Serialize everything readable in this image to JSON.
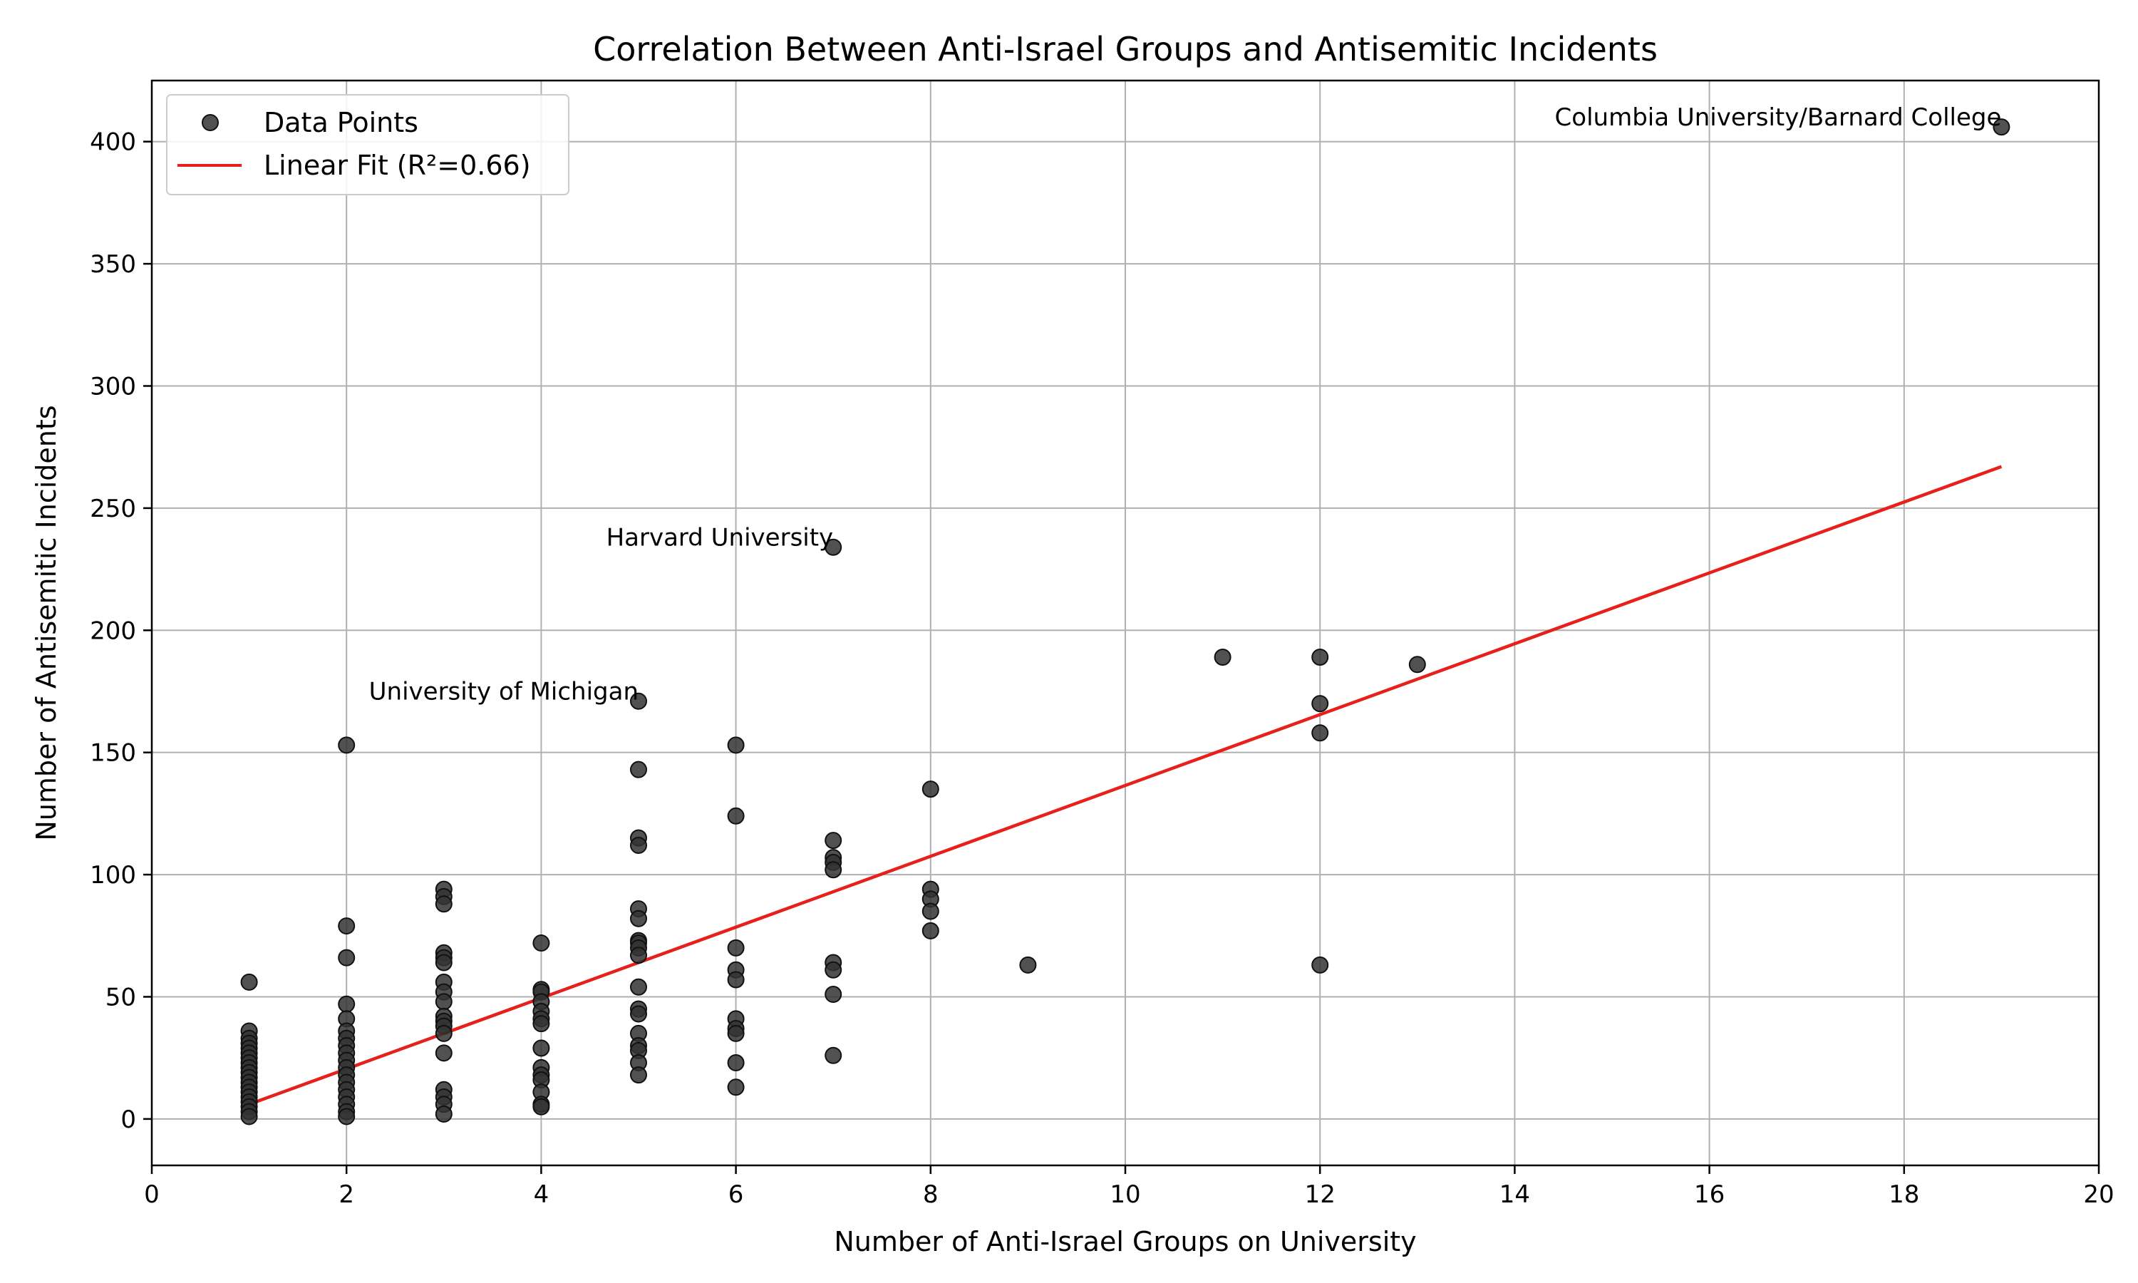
{
  "chart_data": {
    "type": "scatter",
    "title": "Correlation Between Anti-Israel Groups and Antisemitic Incidents",
    "xlabel": "Number of Anti-Israel Groups on University",
    "ylabel": "Number of Antisemitic Incidents",
    "xlim": [
      0,
      20
    ],
    "ylim": [
      -19,
      425
    ],
    "xticks": [
      0,
      2,
      4,
      6,
      8,
      10,
      12,
      14,
      16,
      18,
      20
    ],
    "yticks": [
      0,
      50,
      100,
      150,
      200,
      250,
      300,
      350,
      400
    ],
    "grid": true,
    "legend_position": "top-left",
    "legend": {
      "points_label": "Data Points",
      "fit_label": "Linear Fit (R²=0.66)"
    },
    "colors": {
      "points": "#333333",
      "fit": "#e8201c"
    },
    "series": [
      {
        "name": "Data Points",
        "kind": "scatter",
        "points": [
          [
            1,
            56
          ],
          [
            1,
            36
          ],
          [
            1,
            33
          ],
          [
            1,
            31
          ],
          [
            1,
            29
          ],
          [
            1,
            27
          ],
          [
            1,
            25
          ],
          [
            1,
            23
          ],
          [
            1,
            21
          ],
          [
            1,
            19
          ],
          [
            1,
            17
          ],
          [
            1,
            15
          ],
          [
            1,
            13
          ],
          [
            1,
            11
          ],
          [
            1,
            9
          ],
          [
            1,
            7
          ],
          [
            1,
            5
          ],
          [
            1,
            3
          ],
          [
            1,
            1
          ],
          [
            2,
            153
          ],
          [
            2,
            79
          ],
          [
            2,
            66
          ],
          [
            2,
            47
          ],
          [
            2,
            41
          ],
          [
            2,
            36
          ],
          [
            2,
            33
          ],
          [
            2,
            30
          ],
          [
            2,
            27
          ],
          [
            2,
            24
          ],
          [
            2,
            21
          ],
          [
            2,
            18
          ],
          [
            2,
            15
          ],
          [
            2,
            12
          ],
          [
            2,
            9
          ],
          [
            2,
            6
          ],
          [
            2,
            3
          ],
          [
            2,
            1
          ],
          [
            3,
            94
          ],
          [
            3,
            91
          ],
          [
            3,
            88
          ],
          [
            3,
            68
          ],
          [
            3,
            66
          ],
          [
            3,
            64
          ],
          [
            3,
            56
          ],
          [
            3,
            52
          ],
          [
            3,
            48
          ],
          [
            3,
            42
          ],
          [
            3,
            40
          ],
          [
            3,
            38
          ],
          [
            3,
            35
          ],
          [
            3,
            27
          ],
          [
            3,
            12
          ],
          [
            3,
            9
          ],
          [
            3,
            6
          ],
          [
            3,
            2
          ],
          [
            4,
            72
          ],
          [
            4,
            53
          ],
          [
            4,
            52
          ],
          [
            4,
            48
          ],
          [
            4,
            44
          ],
          [
            4,
            41
          ],
          [
            4,
            39
          ],
          [
            4,
            29
          ],
          [
            4,
            21
          ],
          [
            4,
            18
          ],
          [
            4,
            16
          ],
          [
            4,
            11
          ],
          [
            4,
            6
          ],
          [
            4,
            5
          ],
          [
            5,
            171
          ],
          [
            5,
            143
          ],
          [
            5,
            115
          ],
          [
            5,
            112
          ],
          [
            5,
            86
          ],
          [
            5,
            82
          ],
          [
            5,
            73
          ],
          [
            5,
            72
          ],
          [
            5,
            70
          ],
          [
            5,
            67
          ],
          [
            5,
            54
          ],
          [
            5,
            45
          ],
          [
            5,
            43
          ],
          [
            5,
            35
          ],
          [
            5,
            30
          ],
          [
            5,
            28
          ],
          [
            5,
            23
          ],
          [
            5,
            18
          ],
          [
            6,
            153
          ],
          [
            6,
            124
          ],
          [
            6,
            70
          ],
          [
            6,
            61
          ],
          [
            6,
            57
          ],
          [
            6,
            41
          ],
          [
            6,
            37
          ],
          [
            6,
            35
          ],
          [
            6,
            23
          ],
          [
            6,
            13
          ],
          [
            7,
            234
          ],
          [
            7,
            114
          ],
          [
            7,
            107
          ],
          [
            7,
            105
          ],
          [
            7,
            102
          ],
          [
            7,
            64
          ],
          [
            7,
            61
          ],
          [
            7,
            51
          ],
          [
            7,
            26
          ],
          [
            8,
            135
          ],
          [
            8,
            94
          ],
          [
            8,
            90
          ],
          [
            8,
            85
          ],
          [
            8,
            77
          ],
          [
            9,
            63
          ],
          [
            11,
            189
          ],
          [
            12,
            189
          ],
          [
            12,
            170
          ],
          [
            12,
            158
          ],
          [
            12,
            63
          ],
          [
            13,
            186
          ],
          [
            19,
            406
          ]
        ]
      },
      {
        "name": "Linear Fit (R²=0.66)",
        "kind": "line",
        "points": [
          [
            1,
            6
          ],
          [
            19,
            267
          ]
        ]
      }
    ],
    "annotations": [
      {
        "text": "Columbia University/Barnard College",
        "x": 19,
        "y": 406
      },
      {
        "text": "Harvard University",
        "x": 7,
        "y": 234
      },
      {
        "text": "University of Michigan",
        "x": 5,
        "y": 171
      }
    ]
  }
}
